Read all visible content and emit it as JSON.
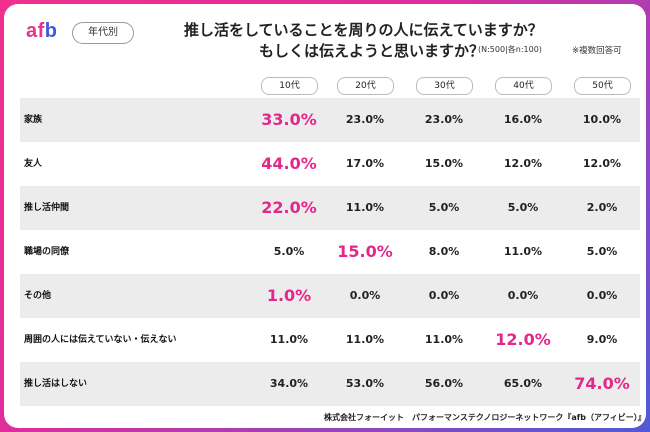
{
  "header": {
    "logo_part1": "af",
    "logo_part2": "b",
    "tag": "年代別",
    "title_line1": "推し活をしていることを周りの人に伝えていますか？",
    "title_line2": "もしくは伝えようと思いますか？",
    "sample": "(N:500|各n:100)",
    "note": "※複数回答可"
  },
  "colors": {
    "accent": "#e3278c",
    "brand_blue": "#3d5bd9",
    "shade": "#ececec"
  },
  "chart_data": {
    "type": "table",
    "categories": [
      "10代",
      "20代",
      "30代",
      "40代",
      "50代"
    ],
    "rows": [
      {
        "label": "家族",
        "values": [
          "33.0%",
          "23.0%",
          "23.0%",
          "16.0%",
          "10.0%"
        ],
        "highlight": 0
      },
      {
        "label": "友人",
        "values": [
          "44.0%",
          "17.0%",
          "15.0%",
          "12.0%",
          "12.0%"
        ],
        "highlight": 0
      },
      {
        "label": "推し活仲間",
        "values": [
          "22.0%",
          "11.0%",
          "5.0%",
          "5.0%",
          "2.0%"
        ],
        "highlight": 0
      },
      {
        "label": "職場の同僚",
        "values": [
          "5.0%",
          "15.0%",
          "8.0%",
          "11.0%",
          "5.0%"
        ],
        "highlight": 1
      },
      {
        "label": "その他",
        "values": [
          "1.0%",
          "0.0%",
          "0.0%",
          "0.0%",
          "0.0%"
        ],
        "highlight": 0
      },
      {
        "label": "周囲の人には伝えていない・伝えない",
        "values": [
          "11.0%",
          "11.0%",
          "11.0%",
          "12.0%",
          "9.0%"
        ],
        "highlight": 3
      },
      {
        "label": "推し活はしない",
        "values": [
          "34.0%",
          "53.0%",
          "56.0%",
          "65.0%",
          "74.0%"
        ],
        "highlight": 4
      }
    ]
  },
  "footer": "株式会社フォーイット　パフォーマンステクノロジーネットワーク『afb（アフィビー）』調べ"
}
